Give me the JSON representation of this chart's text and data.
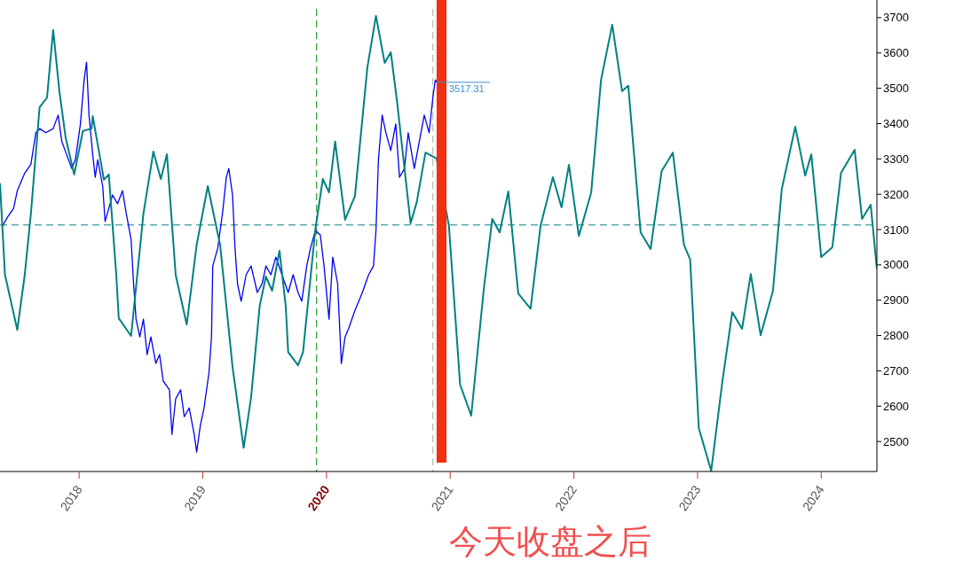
{
  "chart_data": {
    "type": "line",
    "xlim": [
      2017.36,
      2024.45
    ],
    "ylim": [
      2415,
      3750
    ],
    "xticks": [
      2018,
      2019,
      2020,
      2021,
      2022,
      2023,
      2024
    ],
    "yticks": [
      2500,
      2600,
      2700,
      2800,
      2900,
      3000,
      3100,
      3200,
      3300,
      3400,
      3500,
      3600,
      3700
    ],
    "series": [
      {
        "color": "#0000ee",
        "x": [
          2017.38,
          2017.42,
          2017.47,
          2017.5,
          2017.56,
          2017.61,
          2017.65,
          2017.68,
          2017.73,
          2017.79,
          2017.83,
          2017.86,
          2017.9,
          2017.94,
          2017.97,
          2018.01,
          2018.04,
          2018.06,
          2018.08,
          2018.11,
          2018.13,
          2018.15,
          2018.19,
          2018.21,
          2018.24,
          2018.27,
          2018.31,
          2018.35,
          2018.38,
          2018.42,
          2018.44,
          2018.46,
          2018.49,
          2018.52,
          2018.55,
          2018.58,
          2018.62,
          2018.65,
          2018.68,
          2018.73,
          2018.75,
          2018.78,
          2018.82,
          2018.85,
          2018.89,
          2018.93,
          2018.95,
          2018.98,
          2019.01,
          2019.05,
          2019.07,
          2019.08,
          2019.12,
          2019.16,
          2019.19,
          2019.21,
          2019.24,
          2019.26,
          2019.28,
          2019.31,
          2019.35,
          2019.39,
          2019.44,
          2019.48,
          2019.51,
          2019.55,
          2019.59,
          2019.64,
          2019.69,
          2019.73,
          2019.77,
          2019.8,
          2019.84,
          2019.87,
          2019.91,
          2019.95,
          2019.98,
          2020.02,
          2020.05,
          2020.09,
          2020.12,
          2020.15,
          2020.18,
          2020.23,
          2020.29,
          2020.34,
          2020.38,
          2020.4,
          2020.42,
          2020.45,
          2020.48,
          2020.52,
          2020.56,
          2020.59,
          2020.63,
          2020.66,
          2020.71,
          2020.75,
          2020.79,
          2020.83,
          2020.86,
          2020.88,
          2020.89
        ],
        "values": [
          3110,
          3135,
          3160,
          3210,
          3260,
          3285,
          3374,
          3386,
          3374,
          3386,
          3424,
          3349,
          3311,
          3273,
          3298,
          3399,
          3524,
          3574,
          3424,
          3311,
          3248,
          3298,
          3223,
          3123,
          3160,
          3198,
          3173,
          3210,
          3148,
          3072,
          2947,
          2846,
          2796,
          2846,
          2746,
          2796,
          2721,
          2746,
          2671,
          2646,
          2520,
          2620,
          2646,
          2570,
          2595,
          2520,
          2470,
          2545,
          2595,
          2696,
          2796,
          2997,
          3047,
          3148,
          3248,
          3273,
          3198,
          3047,
          2947,
          2897,
          2972,
          2997,
          2922,
          2947,
          2997,
          2972,
          3022,
          2972,
          2922,
          2972,
          2922,
          2897,
          2997,
          3047,
          3097,
          3085,
          2997,
          2846,
          3022,
          2947,
          2721,
          2796,
          2821,
          2871,
          2922,
          2972,
          2997,
          3097,
          3298,
          3424,
          3374,
          3324,
          3399,
          3248,
          3273,
          3374,
          3273,
          3349,
          3424,
          3374,
          3474,
          3524,
          3517
        ]
      },
      {
        "color": "#008080",
        "x": [
          2017.36,
          2017.4,
          2017.5,
          2017.56,
          2017.61,
          2017.68,
          2017.74,
          2017.79,
          2017.84,
          2017.89,
          2017.96,
          2018.03,
          2018.1,
          2018.11,
          2018.2,
          2018.24,
          2018.3,
          2018.32,
          2018.42,
          2018.47,
          2018.52,
          2018.6,
          2018.66,
          2018.71,
          2018.78,
          2018.87,
          2018.95,
          2019.04,
          2019.14,
          2019.24,
          2019.33,
          2019.39,
          2019.46,
          2019.51,
          2019.56,
          2019.62,
          2019.67,
          2019.69,
          2019.77,
          2019.81,
          2019.91,
          2019.97,
          2020.02,
          2020.07,
          2020.15,
          2020.23,
          2020.33,
          2020.4,
          2020.47,
          2020.52,
          2020.57,
          2020.68,
          2020.73,
          2020.8,
          2020.89,
          2020.99,
          2021.08,
          2021.17,
          2021.27,
          2021.34,
          2021.4,
          2021.47,
          2021.55,
          2021.65,
          2021.73,
          2021.83,
          2021.9,
          2021.96,
          2022.04,
          2022.14,
          2022.22,
          2022.31,
          2022.39,
          2022.44,
          2022.54,
          2022.62,
          2022.71,
          2022.8,
          2022.89,
          2022.94,
          2023.01,
          2023.11,
          2023.2,
          2023.28,
          2023.36,
          2023.43,
          2023.51,
          2023.61,
          2023.68,
          2023.79,
          2023.87,
          2023.92,
          2024.0,
          2024.09,
          2024.16,
          2024.27,
          2024.33,
          2024.4,
          2024.45
        ],
        "values": [
          3231,
          2972,
          2816,
          2972,
          3145,
          3446,
          3474,
          3665,
          3492,
          3361,
          3256,
          3379,
          3386,
          3421,
          3241,
          3256,
          2972,
          2849,
          2799,
          2972,
          3145,
          3321,
          3243,
          3313,
          2972,
          2831,
          3057,
          3223,
          3057,
          2711,
          2482,
          2625,
          2884,
          2967,
          2927,
          3040,
          2884,
          2753,
          2716,
          2753,
          3100,
          3243,
          3205,
          3349,
          3128,
          3195,
          3559,
          3705,
          3572,
          3602,
          3464,
          3118,
          3178,
          3318,
          3301,
          3110,
          2661,
          2573,
          2927,
          3130,
          3092,
          3208,
          2919,
          2876,
          3110,
          3248,
          3163,
          3283,
          3082,
          3205,
          3524,
          3680,
          3492,
          3507,
          3092,
          3045,
          3266,
          3318,
          3057,
          3015,
          2538,
          2417,
          2668,
          2866,
          2819,
          2974,
          2801,
          2927,
          3213,
          3391,
          3253,
          3313,
          3022,
          3050,
          3261,
          3326,
          3130,
          3170,
          2989
        ]
      }
    ],
    "ref_lines": [
      {
        "axis": "y",
        "value": 3113,
        "color": "#008080",
        "line_style": "dashed"
      },
      {
        "axis": "x",
        "value": 2019.92,
        "color": "#008000",
        "line_style": "dashed"
      },
      {
        "axis": "x",
        "value": 2020.86,
        "color": "#aaaaaa",
        "line_style": "dashed"
      }
    ],
    "bands": [
      {
        "axis": "x",
        "from": 2020.89,
        "to": 2020.97,
        "color": "#f03010"
      }
    ],
    "annotations": [
      {
        "text": "3517.31",
        "x": 2020.89,
        "y": 3517
      },
      "今天收盘之后"
    ]
  }
}
